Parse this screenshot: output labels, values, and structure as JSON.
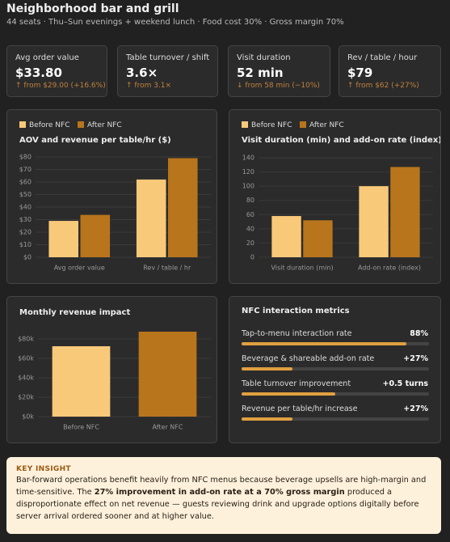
{
  "header": {
    "title": "Neighborhood bar and grill",
    "subtitle": "44 seats · Thu–Sun evenings + weekend lunch · Food cost 30% · Gross margin 70%"
  },
  "kpis": [
    {
      "label": "Avg order value",
      "value": "$33.80",
      "delta": "↑ from $29.00 (+16.6%)"
    },
    {
      "label": "Table turnover / shift",
      "value": "3.6×",
      "delta": "↑ from 3.1×"
    },
    {
      "label": "Visit duration",
      "value": "52 min",
      "delta": "↓ from 58 min (−10%)"
    },
    {
      "label": "Rev / table / hour",
      "value": "$79",
      "delta": "↑ from $62 (+27%)"
    }
  ],
  "chart_data": [
    {
      "type": "bar",
      "title": "AOV and revenue per table/hr ($)",
      "categories": [
        "Avg order value",
        "Rev / table / hr"
      ],
      "series": [
        {
          "name": "Before NFC",
          "color": "#f9c97a",
          "values": [
            29,
            62
          ]
        },
        {
          "name": "After NFC",
          "color": "#b8751c",
          "values": [
            33.8,
            79
          ]
        }
      ],
      "ylim": [
        0,
        80
      ],
      "yticks": [
        {
          "value": 0,
          "label": "$0"
        },
        {
          "value": 10,
          "label": "$10"
        },
        {
          "value": 20,
          "label": "$20"
        },
        {
          "value": 30,
          "label": "$30"
        },
        {
          "value": 40,
          "label": "$40"
        },
        {
          "value": 50,
          "label": "$50"
        },
        {
          "value": 60,
          "label": "$60"
        },
        {
          "value": 70,
          "label": "$70"
        },
        {
          "value": 80,
          "label": "$80"
        }
      ],
      "grid": true
    },
    {
      "type": "bar",
      "title": "Visit duration (min) and add-on rate (index)",
      "categories": [
        "Visit duration (min)",
        "Add-on rate (index)"
      ],
      "series": [
        {
          "name": "Before NFC",
          "color": "#f9c97a",
          "values": [
            58,
            100
          ]
        },
        {
          "name": "After NFC",
          "color": "#b8751c",
          "values": [
            52,
            127
          ]
        }
      ],
      "ylim": [
        0,
        140
      ],
      "yticks": [
        0,
        20,
        40,
        60,
        80,
        100,
        120,
        140
      ],
      "grid": true
    },
    {
      "type": "bar",
      "title": "Monthly revenue impact",
      "categories": [
        "Before NFC",
        "After NFC"
      ],
      "values": [
        72.5,
        87.5
      ],
      "colors": [
        "#f9c97a",
        "#b8751c"
      ],
      "ylim": [
        0,
        90
      ],
      "yticks": [
        {
          "value": 0,
          "label": "$0k"
        },
        {
          "value": 20,
          "label": "$20k"
        },
        {
          "value": 40,
          "label": "$40k"
        },
        {
          "value": 60,
          "label": "$60k"
        },
        {
          "value": 80,
          "label": "$80k"
        }
      ],
      "grid": true
    }
  ],
  "metrics": {
    "title": "NFC interaction metrics",
    "items": [
      {
        "label": "Tap-to-menu interaction rate",
        "display": "88%",
        "fill": 88
      },
      {
        "label": "Beverage & shareable add-on rate",
        "display": "+27%",
        "fill": 27
      },
      {
        "label": "Table turnover improvement",
        "display": "+0.5 turns",
        "fill": 50
      },
      {
        "label": "Revenue per table/hr increase",
        "display": "+27%",
        "fill": 27
      }
    ]
  },
  "insight": {
    "heading": "KEY INSIGHT",
    "before": "Bar-forward operations benefit heavily from NFC menus because beverage upsells are high-margin and time-sensitive. The ",
    "bold": "27% improvement in add-on rate at a 70% gross margin",
    "after": " produced a disproportionate effect on net revenue — guests reviewing drink and upgrade options digitally before server arrival ordered sooner and at higher value."
  }
}
